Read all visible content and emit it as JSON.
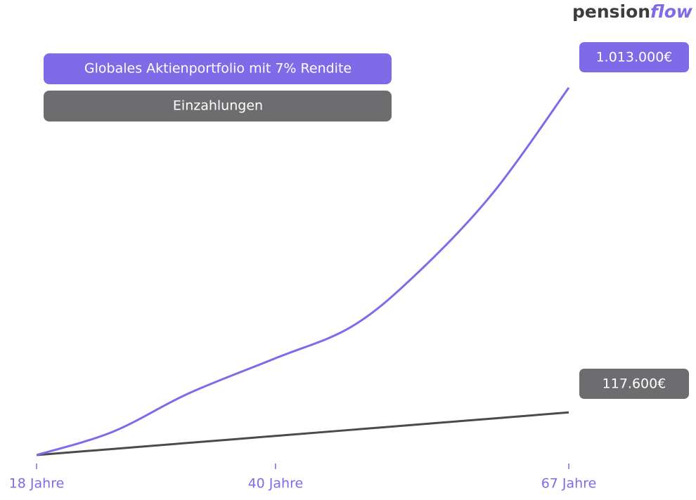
{
  "logo": {
    "part1": "pension",
    "part2": "flow"
  },
  "chart_data": {
    "type": "line",
    "x": [
      18,
      25,
      32,
      40,
      47,
      53,
      60,
      67
    ],
    "xlim": [
      18,
      67
    ],
    "xticks": [
      {
        "value": 18,
        "label": "18 Jahre"
      },
      {
        "value": 40,
        "label": "40 Jahre"
      },
      {
        "value": 67,
        "label": "67 Jahre"
      }
    ],
    "ylim": [
      0,
      1100000
    ],
    "series": [
      {
        "name": "Globales Aktienportfolio mit 7% Rendite",
        "color": "#7f6be8",
        "line_color": "#7f6be8",
        "values": [
          0,
          64000,
          170000,
          267000,
          354000,
          500000,
          722000,
          1013000
        ],
        "value_labels": [
          null,
          null,
          null,
          null,
          null,
          null,
          null,
          "1.013.000€"
        ]
      },
      {
        "name": "Einzahlungen",
        "color": "#6d6d70",
        "line_color": "#4b4b4e",
        "values": [
          0,
          16800,
          33600,
          52800,
          69600,
          84000,
          100800,
          117600
        ],
        "value_labels": [
          null,
          null,
          null,
          null,
          null,
          null,
          null,
          "117.600€"
        ]
      }
    ]
  }
}
